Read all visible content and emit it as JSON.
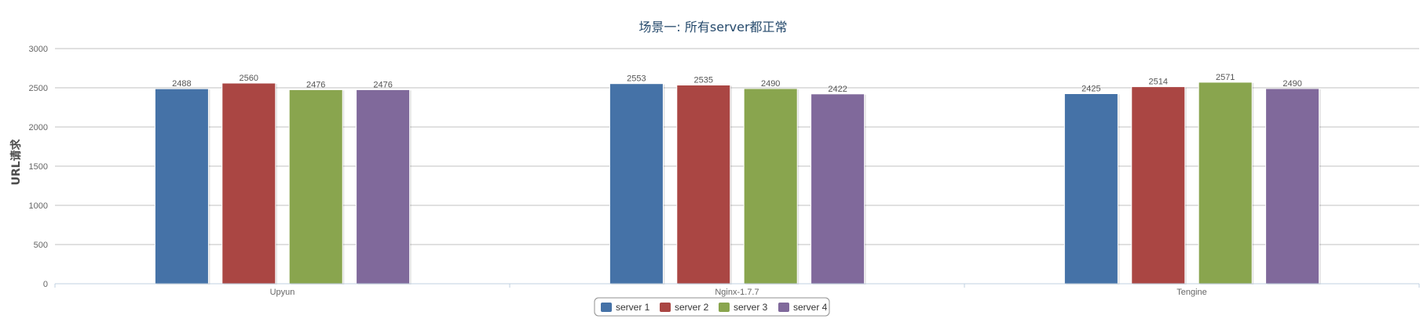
{
  "chart_data": {
    "type": "bar",
    "title": "场景一: 所有server都正常",
    "xlabel": "",
    "ylabel": "URL请求",
    "categories": [
      "Upyun",
      "Nginx-1.7.7",
      "Tengine"
    ],
    "ylim": [
      0,
      3000
    ],
    "yticks": [
      0,
      500,
      1000,
      1500,
      2000,
      2500,
      3000
    ],
    "grid": true,
    "legend_position": "bottom-center",
    "series": [
      {
        "name": "server 1",
        "color": "#4572a7",
        "values": [
          2488,
          2553,
          2425
        ]
      },
      {
        "name": "server 2",
        "color": "#aa4643",
        "values": [
          2560,
          2535,
          2514
        ]
      },
      {
        "name": "server 3",
        "color": "#89a54e",
        "values": [
          2476,
          2490,
          2571
        ]
      },
      {
        "name": "server 4",
        "color": "#80699b",
        "values": [
          2476,
          2422,
          2490
        ]
      }
    ]
  }
}
